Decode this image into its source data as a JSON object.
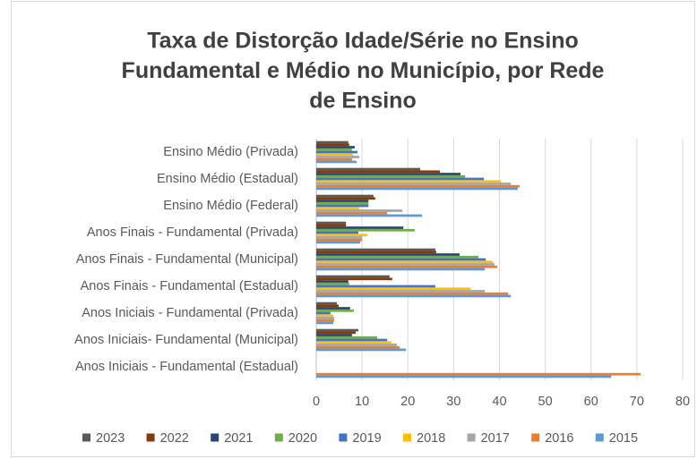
{
  "chart_data": {
    "type": "hbar",
    "title_lines": [
      "Taxa de Distorção Idade/Série no Ensino",
      "Fundamental e Médio no Município, por Rede",
      "de Ensino"
    ],
    "categories": [
      "Ensino Médio (Privada)",
      "Ensino Médio (Estadual)",
      "Ensino Médio (Federal)",
      "Anos Finais - Fundamental (Privada)",
      "Anos Finais - Fundamental (Municipal)",
      "Anos Finais - Fundamental (Estadual)",
      "Anos Iniciais - Fundamental (Privada)",
      "Anos Iniciais- Fundamental (Municipal)",
      "Anos Iniciais - Fundamental (Estadual)"
    ],
    "series": [
      {
        "name": "2023",
        "color": "#595959",
        "values": [
          7.0,
          22.7,
          12.5,
          6.5,
          26.0,
          16.0,
          4.5,
          9.2,
          null
        ]
      },
      {
        "name": "2022",
        "color": "#843c0c",
        "values": [
          7.2,
          27.0,
          12.9,
          6.5,
          26.2,
          16.6,
          4.9,
          8.6,
          null
        ]
      },
      {
        "name": "2021",
        "color": "#264478",
        "values": [
          8.4,
          31.5,
          11.4,
          19.0,
          31.3,
          7.0,
          7.4,
          7.8,
          null
        ]
      },
      {
        "name": "2020",
        "color": "#70ad47",
        "values": [
          7.8,
          32.5,
          11.4,
          21.5,
          35.4,
          7.2,
          8.2,
          13.3,
          null
        ]
      },
      {
        "name": "2019",
        "color": "#4472c4",
        "values": [
          9.0,
          36.6,
          11.4,
          9.2,
          37.0,
          26.0,
          3.1,
          15.5,
          null
        ]
      },
      {
        "name": "2018",
        "color": "#ffc000",
        "values": [
          8.0,
          40.3,
          9.4,
          11.2,
          38.5,
          33.7,
          3.7,
          16.4,
          null
        ]
      },
      {
        "name": "2017",
        "color": "#a5a5a5",
        "values": [
          9.4,
          42.5,
          18.8,
          10.0,
          38.9,
          36.8,
          3.9,
          17.6,
          null
        ]
      },
      {
        "name": "2016",
        "color": "#ed7d31",
        "values": [
          7.8,
          44.4,
          15.5,
          10.0,
          39.5,
          41.9,
          3.9,
          18.2,
          70.8
        ]
      },
      {
        "name": "2015",
        "color": "#5b9bd5",
        "values": [
          8.8,
          44.0,
          23.1,
          9.6,
          36.8,
          42.5,
          3.7,
          19.6,
          64.4
        ]
      }
    ],
    "xlim": [
      0,
      80
    ],
    "xticks": [
      0,
      10,
      20,
      30,
      40,
      50,
      60,
      70,
      80
    ],
    "grid": true
  }
}
